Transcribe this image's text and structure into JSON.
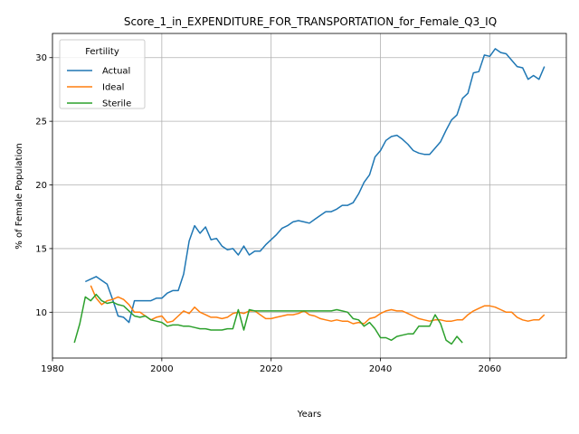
{
  "chart_data": {
    "type": "line",
    "title": "Score_1_in_EXPENDITURE_FOR_TRANSPORTATION_for_Female_Q3_IQ",
    "xlabel": "Years",
    "ylabel": "% of Female Population",
    "xlim": [
      1980,
      2074
    ],
    "ylim": [
      6.4,
      31.9
    ],
    "xticks": [
      1980,
      2000,
      2020,
      2040,
      2060
    ],
    "yticks": [
      10,
      15,
      20,
      25,
      30
    ],
    "grid": true,
    "legend": {
      "title": "Fertility",
      "position": "top-left"
    },
    "series": [
      {
        "name": "Actual",
        "color": "#1f77b4",
        "points": [
          [
            1986,
            12.4
          ],
          [
            1987,
            12.6
          ],
          [
            1988,
            12.8
          ],
          [
            1989,
            12.5
          ],
          [
            1990,
            12.2
          ],
          [
            1991,
            11.0
          ],
          [
            1992,
            9.7
          ],
          [
            1993,
            9.6
          ],
          [
            1994,
            9.2
          ],
          [
            1995,
            10.9
          ],
          [
            1996,
            10.9
          ],
          [
            1997,
            10.9
          ],
          [
            1998,
            10.9
          ],
          [
            1999,
            11.1
          ],
          [
            2000,
            11.1
          ],
          [
            2001,
            11.5
          ],
          [
            2002,
            11.7
          ],
          [
            2003,
            11.7
          ],
          [
            2004,
            13.0
          ],
          [
            2005,
            15.6
          ],
          [
            2006,
            16.8
          ],
          [
            2007,
            16.2
          ],
          [
            2008,
            16.7
          ],
          [
            2009,
            15.7
          ],
          [
            2010,
            15.8
          ],
          [
            2011,
            15.2
          ],
          [
            2012,
            14.9
          ],
          [
            2013,
            15.0
          ],
          [
            2014,
            14.5
          ],
          [
            2015,
            15.2
          ],
          [
            2016,
            14.5
          ],
          [
            2017,
            14.8
          ],
          [
            2018,
            14.8
          ],
          [
            2019,
            15.3
          ],
          [
            2020,
            15.7
          ],
          [
            2021,
            16.1
          ],
          [
            2022,
            16.6
          ],
          [
            2023,
            16.8
          ],
          [
            2024,
            17.1
          ],
          [
            2025,
            17.2
          ],
          [
            2026,
            17.1
          ],
          [
            2027,
            17.0
          ],
          [
            2028,
            17.3
          ],
          [
            2029,
            17.6
          ],
          [
            2030,
            17.9
          ],
          [
            2031,
            17.9
          ],
          [
            2032,
            18.1
          ],
          [
            2033,
            18.4
          ],
          [
            2034,
            18.4
          ],
          [
            2035,
            18.6
          ],
          [
            2036,
            19.3
          ],
          [
            2037,
            20.2
          ],
          [
            2038,
            20.8
          ],
          [
            2039,
            22.2
          ],
          [
            2040,
            22.7
          ],
          [
            2041,
            23.5
          ],
          [
            2042,
            23.8
          ],
          [
            2043,
            23.9
          ],
          [
            2044,
            23.6
          ],
          [
            2045,
            23.2
          ],
          [
            2046,
            22.7
          ],
          [
            2047,
            22.5
          ],
          [
            2048,
            22.4
          ],
          [
            2049,
            22.4
          ],
          [
            2050,
            22.9
          ],
          [
            2051,
            23.4
          ],
          [
            2052,
            24.3
          ],
          [
            2053,
            25.1
          ],
          [
            2054,
            25.5
          ],
          [
            2055,
            26.8
          ],
          [
            2056,
            27.2
          ],
          [
            2057,
            28.8
          ],
          [
            2058,
            28.9
          ],
          [
            2059,
            30.2
          ],
          [
            2060,
            30.1
          ],
          [
            2061,
            30.7
          ],
          [
            2062,
            30.4
          ],
          [
            2063,
            30.3
          ],
          [
            2064,
            29.8
          ],
          [
            2065,
            29.3
          ],
          [
            2066,
            29.2
          ],
          [
            2067,
            28.3
          ],
          [
            2068,
            28.6
          ],
          [
            2069,
            28.3
          ],
          [
            2070,
            29.3
          ]
        ]
      },
      {
        "name": "Ideal",
        "color": "#ff7f0e",
        "points": [
          [
            1987,
            12.1
          ],
          [
            1988,
            11.1
          ],
          [
            1989,
            10.6
          ],
          [
            1990,
            10.9
          ],
          [
            1991,
            11.0
          ],
          [
            1992,
            11.2
          ],
          [
            1993,
            11.0
          ],
          [
            1994,
            10.6
          ],
          [
            1995,
            10.0
          ],
          [
            1996,
            10.0
          ],
          [
            1997,
            9.7
          ],
          [
            1998,
            9.4
          ],
          [
            1999,
            9.6
          ],
          [
            2000,
            9.7
          ],
          [
            2001,
            9.2
          ],
          [
            2002,
            9.3
          ],
          [
            2003,
            9.7
          ],
          [
            2004,
            10.1
          ],
          [
            2005,
            9.9
          ],
          [
            2006,
            10.4
          ],
          [
            2007,
            10.0
          ],
          [
            2008,
            9.8
          ],
          [
            2009,
            9.6
          ],
          [
            2010,
            9.6
          ],
          [
            2011,
            9.5
          ],
          [
            2012,
            9.6
          ],
          [
            2013,
            9.9
          ],
          [
            2014,
            10.0
          ],
          [
            2015,
            9.9
          ],
          [
            2016,
            10.1
          ],
          [
            2017,
            10.1
          ],
          [
            2018,
            9.8
          ],
          [
            2019,
            9.5
          ],
          [
            2020,
            9.5
          ],
          [
            2021,
            9.6
          ],
          [
            2022,
            9.7
          ],
          [
            2023,
            9.8
          ],
          [
            2024,
            9.8
          ],
          [
            2025,
            9.9
          ],
          [
            2026,
            10.1
          ],
          [
            2027,
            9.8
          ],
          [
            2028,
            9.7
          ],
          [
            2029,
            9.5
          ],
          [
            2030,
            9.4
          ],
          [
            2031,
            9.3
          ],
          [
            2032,
            9.4
          ],
          [
            2033,
            9.3
          ],
          [
            2034,
            9.3
          ],
          [
            2035,
            9.1
          ],
          [
            2036,
            9.2
          ],
          [
            2037,
            9.1
          ],
          [
            2038,
            9.5
          ],
          [
            2039,
            9.6
          ],
          [
            2040,
            9.9
          ],
          [
            2041,
            10.1
          ],
          [
            2042,
            10.2
          ],
          [
            2043,
            10.1
          ],
          [
            2044,
            10.1
          ],
          [
            2045,
            9.9
          ],
          [
            2046,
            9.7
          ],
          [
            2047,
            9.5
          ],
          [
            2048,
            9.4
          ],
          [
            2049,
            9.3
          ],
          [
            2050,
            9.4
          ],
          [
            2051,
            9.4
          ],
          [
            2052,
            9.3
          ],
          [
            2053,
            9.3
          ],
          [
            2054,
            9.4
          ],
          [
            2055,
            9.4
          ],
          [
            2056,
            9.8
          ],
          [
            2057,
            10.1
          ],
          [
            2058,
            10.3
          ],
          [
            2059,
            10.5
          ],
          [
            2060,
            10.5
          ],
          [
            2061,
            10.4
          ],
          [
            2062,
            10.2
          ],
          [
            2063,
            10.0
          ],
          [
            2064,
            10.0
          ],
          [
            2065,
            9.6
          ],
          [
            2066,
            9.4
          ],
          [
            2067,
            9.3
          ],
          [
            2068,
            9.4
          ],
          [
            2069,
            9.4
          ],
          [
            2070,
            9.8
          ]
        ]
      },
      {
        "name": "Sterile",
        "color": "#2ca02c",
        "points": [
          [
            1984,
            7.6
          ],
          [
            1985,
            9.1
          ],
          [
            1986,
            11.2
          ],
          [
            1987,
            10.9
          ],
          [
            1988,
            11.4
          ],
          [
            1989,
            10.9
          ],
          [
            1990,
            10.7
          ],
          [
            1991,
            10.8
          ],
          [
            1992,
            10.6
          ],
          [
            1993,
            10.5
          ],
          [
            1994,
            10.1
          ],
          [
            1995,
            9.7
          ],
          [
            1996,
            9.6
          ],
          [
            1997,
            9.7
          ],
          [
            1998,
            9.4
          ],
          [
            1999,
            9.3
          ],
          [
            2000,
            9.2
          ],
          [
            2001,
            8.9
          ],
          [
            2002,
            9.0
          ],
          [
            2003,
            9.0
          ],
          [
            2004,
            8.9
          ],
          [
            2005,
            8.9
          ],
          [
            2006,
            8.8
          ],
          [
            2007,
            8.7
          ],
          [
            2008,
            8.7
          ],
          [
            2009,
            8.6
          ],
          [
            2010,
            8.6
          ],
          [
            2011,
            8.6
          ],
          [
            2012,
            8.7
          ],
          [
            2013,
            8.7
          ],
          [
            2014,
            10.2
          ],
          [
            2015,
            8.6
          ],
          [
            2016,
            10.2
          ],
          [
            2017,
            10.1
          ],
          [
            2018,
            10.1
          ],
          [
            2019,
            10.1
          ],
          [
            2020,
            10.1
          ],
          [
            2021,
            10.1
          ],
          [
            2022,
            10.1
          ],
          [
            2023,
            10.1
          ],
          [
            2024,
            10.1
          ],
          [
            2025,
            10.1
          ],
          [
            2026,
            10.1
          ],
          [
            2027,
            10.1
          ],
          [
            2028,
            10.1
          ],
          [
            2029,
            10.1
          ],
          [
            2030,
            10.1
          ],
          [
            2031,
            10.1
          ],
          [
            2032,
            10.2
          ],
          [
            2033,
            10.1
          ],
          [
            2034,
            10.0
          ],
          [
            2035,
            9.5
          ],
          [
            2036,
            9.4
          ],
          [
            2037,
            8.9
          ],
          [
            2038,
            9.2
          ],
          [
            2039,
            8.7
          ],
          [
            2040,
            8.0
          ],
          [
            2041,
            8.0
          ],
          [
            2042,
            7.8
          ],
          [
            2043,
            8.1
          ],
          [
            2044,
            8.2
          ],
          [
            2045,
            8.3
          ],
          [
            2046,
            8.3
          ],
          [
            2047,
            8.9
          ],
          [
            2048,
            8.9
          ],
          [
            2049,
            8.9
          ],
          [
            2050,
            9.8
          ],
          [
            2051,
            9.1
          ],
          [
            2052,
            7.8
          ],
          [
            2053,
            7.5
          ],
          [
            2054,
            8.1
          ],
          [
            2055,
            7.6
          ]
        ]
      }
    ]
  }
}
